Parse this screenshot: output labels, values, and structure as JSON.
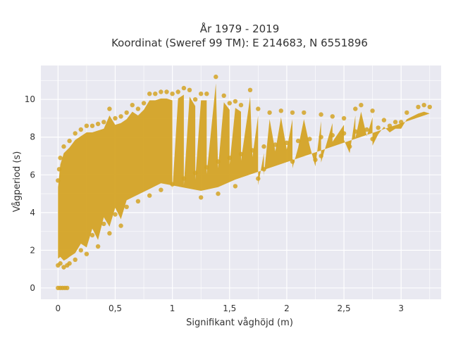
{
  "chart_data": {
    "type": "scatter",
    "title_lines": [
      "År 1979 - 2019",
      "Koordinat (Sweref 99 TM): E 214683, N 6551896"
    ],
    "xlabel": "Signifikant våghöjd (m)",
    "ylabel": "Vågperiod (s)",
    "xlim": [
      -0.15,
      3.35
    ],
    "ylim": [
      -0.6,
      11.8
    ],
    "x_ticks": [
      0,
      0.5,
      1,
      1.5,
      2,
      2.5,
      3
    ],
    "x_tick_labels": [
      "0",
      "0,5",
      "1",
      "1,5",
      "2",
      "2,5",
      "3"
    ],
    "y_ticks": [
      0,
      2,
      4,
      6,
      8,
      10
    ],
    "y_tick_labels": [
      "0",
      "2",
      "4",
      "6",
      "8",
      "10"
    ],
    "grid": true,
    "marker_color": "#d4a325",
    "background_color": "#e9e9f1",
    "points": [
      [
        0.0,
        0.0
      ],
      [
        0.02,
        0.0
      ],
      [
        0.04,
        0.0
      ],
      [
        0.06,
        0.0
      ],
      [
        0.08,
        0.0
      ],
      [
        0.0,
        1.2
      ],
      [
        0.02,
        1.3
      ],
      [
        0.05,
        1.1
      ],
      [
        0.08,
        1.2
      ],
      [
        0.1,
        1.3
      ],
      [
        0.0,
        5.7
      ],
      [
        0.01,
        6.3
      ],
      [
        0.02,
        6.9
      ],
      [
        0.05,
        7.5
      ],
      [
        0.1,
        7.8
      ],
      [
        0.15,
        8.2
      ],
      [
        0.2,
        8.4
      ],
      [
        0.25,
        8.6
      ],
      [
        0.3,
        8.6
      ],
      [
        0.35,
        8.7
      ],
      [
        0.4,
        8.8
      ],
      [
        0.45,
        9.5
      ],
      [
        0.5,
        9.0
      ],
      [
        0.55,
        9.1
      ],
      [
        0.6,
        9.3
      ],
      [
        0.65,
        9.7
      ],
      [
        0.7,
        9.5
      ],
      [
        0.75,
        9.8
      ],
      [
        0.8,
        10.3
      ],
      [
        0.85,
        10.3
      ],
      [
        0.9,
        10.4
      ],
      [
        0.95,
        10.4
      ],
      [
        1.0,
        10.3
      ],
      [
        1.05,
        10.4
      ],
      [
        1.1,
        10.6
      ],
      [
        1.15,
        10.5
      ],
      [
        1.2,
        10.0
      ],
      [
        1.25,
        10.3
      ],
      [
        1.3,
        10.3
      ],
      [
        1.38,
        11.2
      ],
      [
        1.45,
        10.2
      ],
      [
        1.5,
        9.8
      ],
      [
        1.55,
        9.9
      ],
      [
        1.6,
        9.7
      ],
      [
        1.68,
        10.5
      ],
      [
        1.75,
        9.5
      ],
      [
        1.85,
        9.3
      ],
      [
        1.95,
        9.4
      ],
      [
        2.05,
        9.3
      ],
      [
        2.15,
        9.3
      ],
      [
        2.3,
        9.2
      ],
      [
        2.4,
        9.1
      ],
      [
        2.5,
        9.0
      ],
      [
        2.6,
        9.5
      ],
      [
        2.65,
        9.7
      ],
      [
        2.75,
        9.4
      ],
      [
        2.85,
        8.9
      ],
      [
        2.95,
        8.8
      ],
      [
        3.05,
        9.3
      ],
      [
        3.15,
        9.6
      ],
      [
        3.2,
        9.7
      ],
      [
        3.25,
        9.6
      ],
      [
        0.2,
        2.0
      ],
      [
        0.3,
        2.8
      ],
      [
        0.4,
        3.4
      ],
      [
        0.5,
        3.9
      ],
      [
        0.6,
        4.3
      ],
      [
        0.7,
        4.6
      ],
      [
        0.8,
        4.9
      ],
      [
        0.9,
        5.2
      ],
      [
        1.0,
        5.5
      ],
      [
        1.1,
        5.8
      ],
      [
        1.2,
        6.1
      ],
      [
        1.3,
        6.4
      ],
      [
        1.4,
        6.7
      ],
      [
        1.5,
        6.9
      ],
      [
        1.6,
        7.1
      ],
      [
        1.7,
        7.3
      ],
      [
        1.8,
        7.5
      ],
      [
        1.9,
        7.6
      ],
      [
        2.0,
        7.7
      ],
      [
        2.1,
        7.8
      ],
      [
        2.2,
        7.9
      ],
      [
        2.3,
        8.0
      ],
      [
        2.4,
        8.1
      ],
      [
        2.5,
        8.2
      ],
      [
        2.6,
        8.3
      ],
      [
        2.7,
        8.4
      ],
      [
        2.8,
        8.5
      ],
      [
        2.9,
        8.6
      ],
      [
        3.0,
        8.8
      ],
      [
        1.4,
        5.0
      ],
      [
        1.55,
        5.4
      ],
      [
        1.8,
        6.3
      ],
      [
        2.05,
        6.7
      ],
      [
        2.3,
        7.0
      ],
      [
        0.35,
        2.2
      ],
      [
        0.45,
        2.9
      ],
      [
        0.55,
        3.3
      ],
      [
        1.25,
        4.8
      ],
      [
        1.75,
        5.8
      ],
      [
        2.25,
        6.8
      ],
      [
        2.55,
        7.5
      ],
      [
        2.75,
        7.9
      ],
      [
        0.15,
        1.5
      ],
      [
        0.25,
        1.8
      ]
    ]
  }
}
